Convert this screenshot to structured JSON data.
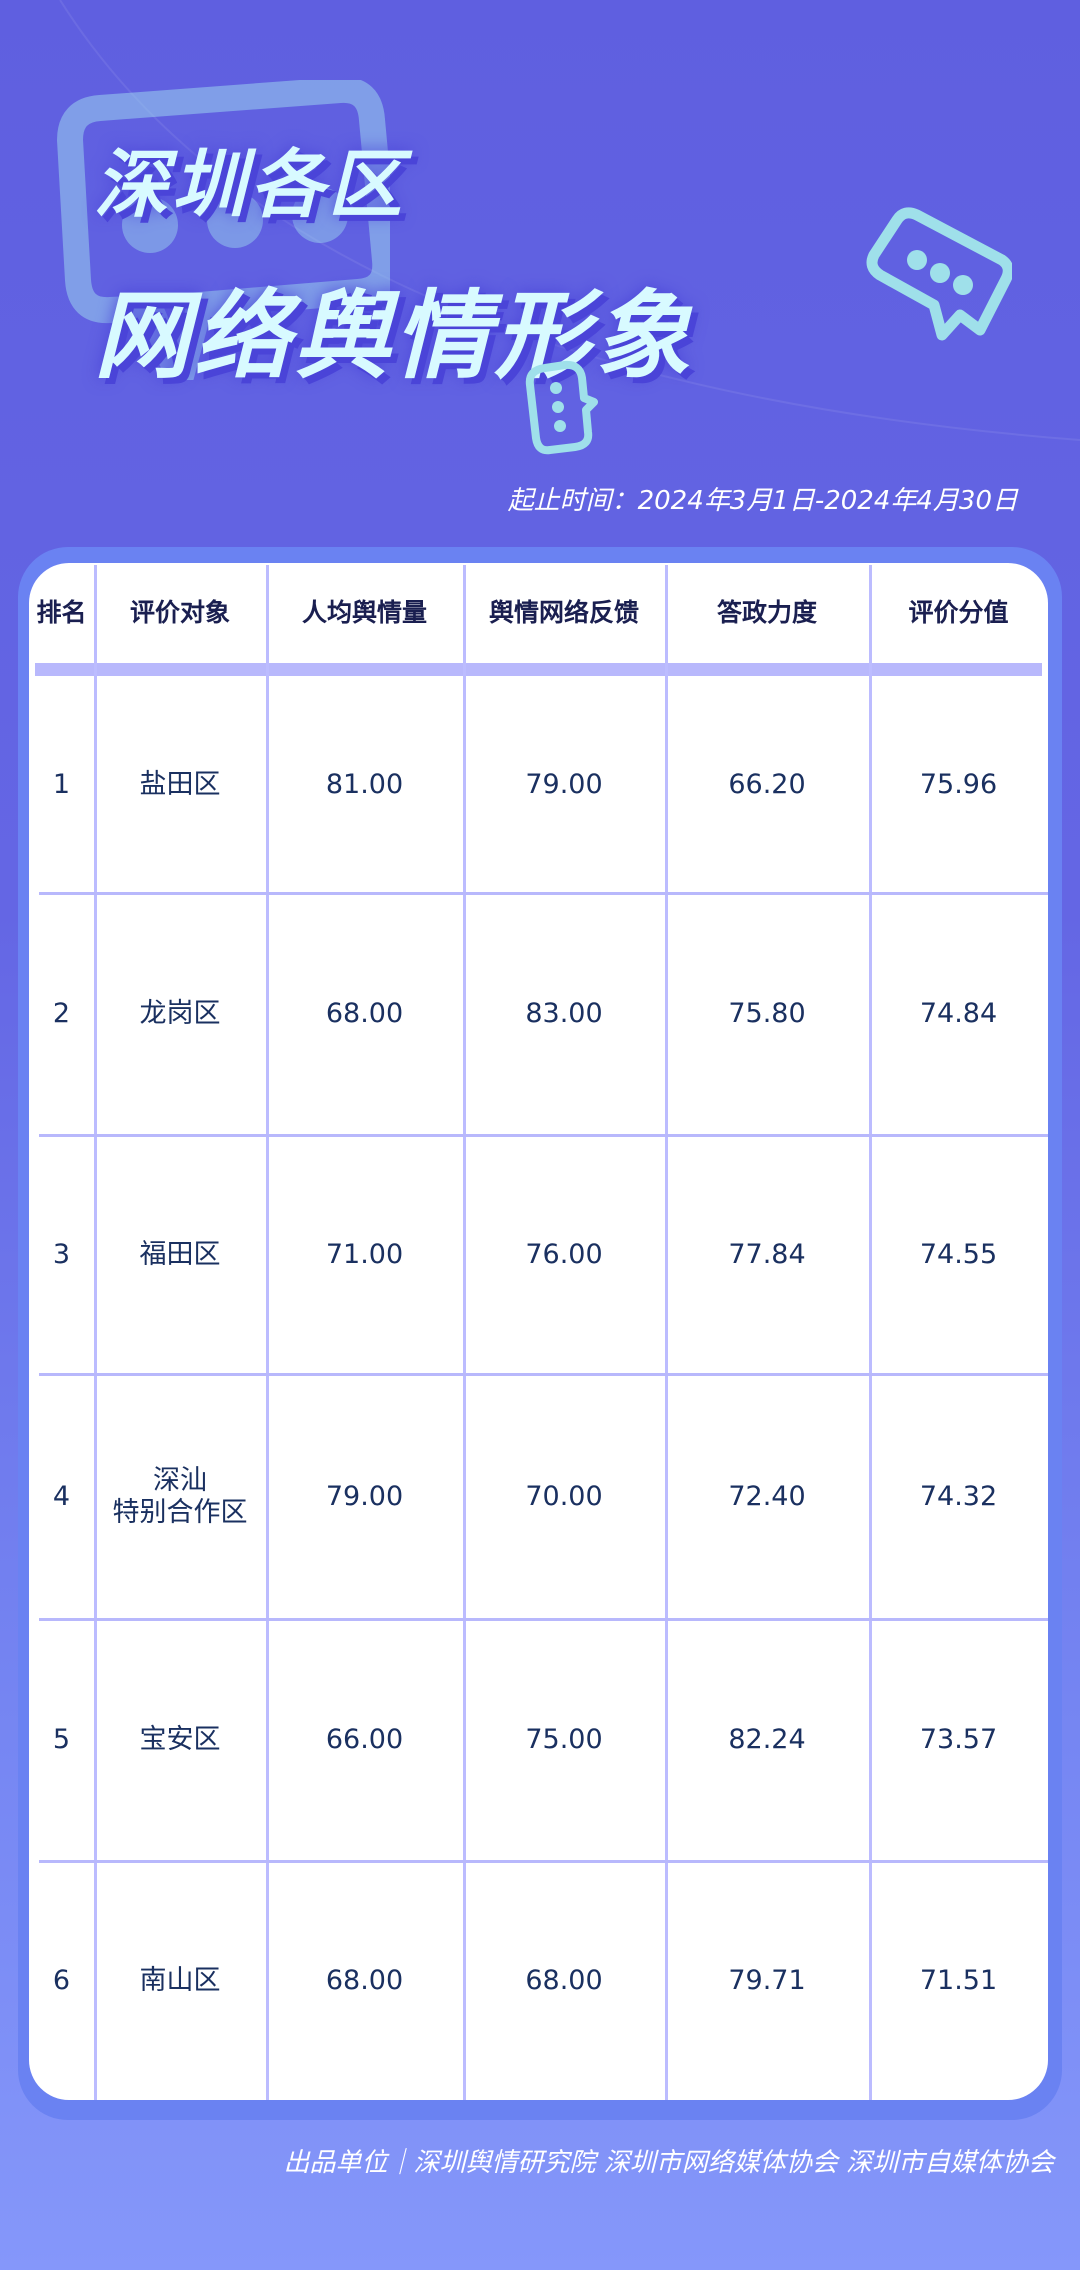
{
  "header": {
    "title_line1": "深圳各区",
    "title_line2": "网络舆情形象",
    "date_range": "起止时间：2024年3月1日-2024年4月30日"
  },
  "colors": {
    "background_top": "#5f5fe0",
    "background_bottom": "#8597fa",
    "frame": "#6a82f2",
    "grid": "#b8b8fc",
    "text": "#1a3060",
    "title": "#d8faff",
    "bubble": "#9fe0ea"
  },
  "icons": [
    "chat-bubble-icon",
    "chat-bubble-small-icon",
    "chat-bubble-large-icon"
  ],
  "table": {
    "columns": [
      "排名",
      "评价对象",
      "人均舆情量",
      "舆情网络反馈",
      "答政力度",
      "评价分值"
    ],
    "rows": [
      [
        "1",
        "盐田区",
        "81.00",
        "79.00",
        "66.20",
        "75.96"
      ],
      [
        "2",
        "龙岗区",
        "68.00",
        "83.00",
        "75.80",
        "74.84"
      ],
      [
        "3",
        "福田区",
        "71.00",
        "76.00",
        "77.84",
        "74.55"
      ],
      [
        "4",
        "深汕\n特别合作区",
        "79.00",
        "70.00",
        "72.40",
        "74.32"
      ],
      [
        "5",
        "宝安区",
        "66.00",
        "75.00",
        "82.24",
        "73.57"
      ],
      [
        "6",
        "南山区",
        "68.00",
        "68.00",
        "79.71",
        "71.51"
      ]
    ]
  },
  "footer": {
    "text": "出品单位｜深圳舆情研究院 深圳市网络媒体协会 深圳市自媒体协会"
  }
}
